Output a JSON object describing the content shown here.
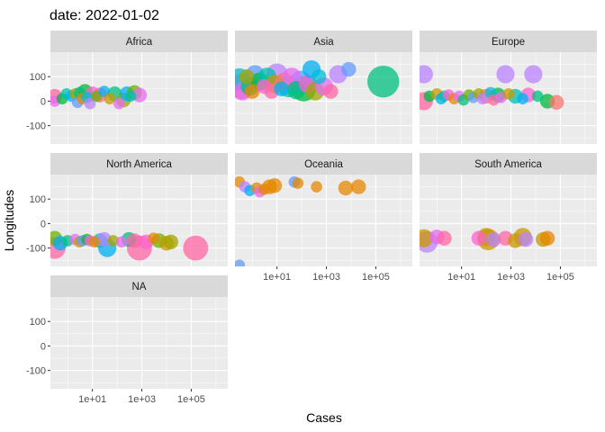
{
  "chart_data": {
    "type": "scatter",
    "title": "date: 2022-01-02",
    "xlabel": "Cases",
    "ylabel": "Longitudes",
    "x_scale": "log10",
    "xlim": [
      0.2,
      3000000
    ],
    "ylim": [
      -175,
      200
    ],
    "x_ticks": [
      10,
      1000,
      100000
    ],
    "x_tick_labels": [
      "1e+01",
      "1e+03",
      "1e+05"
    ],
    "y_ticks": [
      -100,
      0,
      100
    ],
    "y_tick_labels": [
      "-100",
      "0",
      "100"
    ],
    "grid": true,
    "legend": "none",
    "facet_by": "continent",
    "colors": {
      "panel_bg": "#ebebeb",
      "strip_bg": "#d9d9d9",
      "grid_major": "#ffffff",
      "palette": [
        "#F8766D",
        "#E58700",
        "#C99800",
        "#A3A500",
        "#6BB100",
        "#00BA38",
        "#00BF7D",
        "#00C0AF",
        "#00BCD8",
        "#00B0F6",
        "#619CFF",
        "#B983FF",
        "#E76BF3",
        "#FD61D1",
        "#FF67A4"
      ]
    },
    "panels": [
      {
        "label": "Africa",
        "points": [
          {
            "x": 0.3,
            "y": 20,
            "s": 3,
            "c": 14
          },
          {
            "x": 0.3,
            "y": 0,
            "s": 2,
            "c": 12
          },
          {
            "x": 0.6,
            "y": 10,
            "s": 2,
            "c": 5
          },
          {
            "x": 0.9,
            "y": 30,
            "s": 2,
            "c": 7
          },
          {
            "x": 1.4,
            "y": 20,
            "s": 2,
            "c": 9
          },
          {
            "x": 2,
            "y": 30,
            "s": 2,
            "c": 3
          },
          {
            "x": 2.5,
            "y": -5,
            "s": 2,
            "c": 10
          },
          {
            "x": 3,
            "y": 35,
            "s": 2,
            "c": 6
          },
          {
            "x": 4,
            "y": 10,
            "s": 2,
            "c": 1
          },
          {
            "x": 5,
            "y": 40,
            "s": 3,
            "c": 5
          },
          {
            "x": 6,
            "y": 15,
            "s": 2,
            "c": 8
          },
          {
            "x": 8,
            "y": -10,
            "s": 2,
            "c": 11
          },
          {
            "x": 10,
            "y": 30,
            "s": 3,
            "c": 13
          },
          {
            "x": 15,
            "y": 20,
            "s": 2,
            "c": 4
          },
          {
            "x": 20,
            "y": 25,
            "s": 3,
            "c": 14
          },
          {
            "x": 30,
            "y": 40,
            "s": 2,
            "c": 9
          },
          {
            "x": 50,
            "y": 10,
            "s": 2,
            "c": 2
          },
          {
            "x": 80,
            "y": 30,
            "s": 3,
            "c": 6
          },
          {
            "x": 120,
            "y": -10,
            "s": 2,
            "c": 12
          },
          {
            "x": 180,
            "y": 5,
            "s": 3,
            "c": 3
          },
          {
            "x": 250,
            "y": 30,
            "s": 3,
            "c": 9
          },
          {
            "x": 350,
            "y": 20,
            "s": 2,
            "c": 7
          },
          {
            "x": 500,
            "y": 35,
            "s": 3,
            "c": 4
          },
          {
            "x": 800,
            "y": 25,
            "s": 3,
            "c": 12
          }
        ]
      },
      {
        "label": "Asia",
        "points": [
          {
            "x": 0.3,
            "y": 90,
            "s": 5,
            "c": 8
          },
          {
            "x": 0.35,
            "y": 60,
            "s": 6,
            "c": 14
          },
          {
            "x": 0.4,
            "y": 40,
            "s": 4,
            "c": 12
          },
          {
            "x": 0.6,
            "y": 100,
            "s": 3,
            "c": 3
          },
          {
            "x": 0.8,
            "y": 60,
            "s": 4,
            "c": 6
          },
          {
            "x": 1,
            "y": 40,
            "s": 3,
            "c": 1
          },
          {
            "x": 1.3,
            "y": 110,
            "s": 4,
            "c": 10
          },
          {
            "x": 2,
            "y": 80,
            "s": 4,
            "c": 5
          },
          {
            "x": 3,
            "y": 60,
            "s": 3,
            "c": 13
          },
          {
            "x": 4,
            "y": 100,
            "s": 4,
            "c": 7
          },
          {
            "x": 6,
            "y": 40,
            "s": 3,
            "c": 14
          },
          {
            "x": 8,
            "y": 70,
            "s": 4,
            "c": 2
          },
          {
            "x": 10,
            "y": 110,
            "s": 5,
            "c": 11
          },
          {
            "x": 15,
            "y": 50,
            "s": 3,
            "c": 9
          },
          {
            "x": 20,
            "y": 80,
            "s": 4,
            "c": 0
          },
          {
            "x": 30,
            "y": 60,
            "s": 5,
            "c": 7
          },
          {
            "x": 40,
            "y": 100,
            "s": 4,
            "c": 12
          },
          {
            "x": 60,
            "y": 45,
            "s": 4,
            "c": 6
          },
          {
            "x": 90,
            "y": 80,
            "s": 5,
            "c": 10
          },
          {
            "x": 120,
            "y": 50,
            "s": 6,
            "c": 5
          },
          {
            "x": 180,
            "y": 70,
            "s": 4,
            "c": 13
          },
          {
            "x": 250,
            "y": 130,
            "s": 4,
            "c": 9
          },
          {
            "x": 350,
            "y": 40,
            "s": 4,
            "c": 3
          },
          {
            "x": 500,
            "y": 100,
            "s": 3,
            "c": 8
          },
          {
            "x": 800,
            "y": 60,
            "s": 4,
            "c": 12
          },
          {
            "x": 1500,
            "y": 40,
            "s": 3,
            "c": 14
          },
          {
            "x": 3000,
            "y": 110,
            "s": 4,
            "c": 11
          },
          {
            "x": 8000,
            "y": 130,
            "s": 3,
            "c": 10
          },
          {
            "x": 200000,
            "y": 80,
            "s": 8,
            "c": 6
          }
        ]
      },
      {
        "label": "Europe",
        "points": [
          {
            "x": 0.3,
            "y": 110,
            "s": 4,
            "c": 11
          },
          {
            "x": 0.3,
            "y": 0,
            "s": 4,
            "c": 14
          },
          {
            "x": 0.5,
            "y": 20,
            "s": 2,
            "c": 5
          },
          {
            "x": 1,
            "y": 30,
            "s": 2,
            "c": 2
          },
          {
            "x": 1.5,
            "y": 10,
            "s": 2,
            "c": 9
          },
          {
            "x": 2,
            "y": 20,
            "s": 2,
            "c": 7
          },
          {
            "x": 3,
            "y": 25,
            "s": 2,
            "c": 13
          },
          {
            "x": 5,
            "y": 10,
            "s": 2,
            "c": 1
          },
          {
            "x": 8,
            "y": 20,
            "s": 2,
            "c": 12
          },
          {
            "x": 12,
            "y": 5,
            "s": 2,
            "c": 6
          },
          {
            "x": 20,
            "y": 25,
            "s": 2,
            "c": 4
          },
          {
            "x": 30,
            "y": 15,
            "s": 2,
            "c": 10
          },
          {
            "x": 50,
            "y": 30,
            "s": 2,
            "c": 3
          },
          {
            "x": 70,
            "y": 10,
            "s": 2,
            "c": 11
          },
          {
            "x": 100,
            "y": 20,
            "s": 3,
            "c": 0
          },
          {
            "x": 150,
            "y": 35,
            "s": 2,
            "c": 8
          },
          {
            "x": 200,
            "y": 5,
            "s": 2,
            "c": 14
          },
          {
            "x": 300,
            "y": 25,
            "s": 3,
            "c": 5
          },
          {
            "x": 400,
            "y": 15,
            "s": 2,
            "c": 12
          },
          {
            "x": 600,
            "y": 110,
            "s": 4,
            "c": 11
          },
          {
            "x": 800,
            "y": 30,
            "s": 2,
            "c": 2
          },
          {
            "x": 1500,
            "y": 20,
            "s": 3,
            "c": 7
          },
          {
            "x": 3000,
            "y": 10,
            "s": 2,
            "c": 9
          },
          {
            "x": 5000,
            "y": 25,
            "s": 3,
            "c": 13
          },
          {
            "x": 8000,
            "y": 110,
            "s": 4,
            "c": 11
          },
          {
            "x": 12000,
            "y": 20,
            "s": 2,
            "c": 6
          },
          {
            "x": 30000,
            "y": 0,
            "s": 3,
            "c": 5
          },
          {
            "x": 70000,
            "y": -5,
            "s": 3,
            "c": 0
          }
        ]
      },
      {
        "label": "North America",
        "points": [
          {
            "x": 0.3,
            "y": -60,
            "s": 3,
            "c": 4
          },
          {
            "x": 0.3,
            "y": -100,
            "s": 5,
            "c": 14
          },
          {
            "x": 0.5,
            "y": -80,
            "s": 3,
            "c": 9
          },
          {
            "x": 1,
            "y": -70,
            "s": 2,
            "c": 6
          },
          {
            "x": 2,
            "y": -65,
            "s": 2,
            "c": 12
          },
          {
            "x": 3,
            "y": -75,
            "s": 2,
            "c": 2
          },
          {
            "x": 4,
            "y": -70,
            "s": 2,
            "c": 10
          },
          {
            "x": 6,
            "y": -65,
            "s": 2,
            "c": 5
          },
          {
            "x": 8,
            "y": -70,
            "s": 2,
            "c": 13
          },
          {
            "x": 12,
            "y": -75,
            "s": 2,
            "c": 1
          },
          {
            "x": 20,
            "y": -70,
            "s": 3,
            "c": 8
          },
          {
            "x": 30,
            "y": -65,
            "s": 3,
            "c": 11
          },
          {
            "x": 40,
            "y": -100,
            "s": 4,
            "c": 9
          },
          {
            "x": 70,
            "y": -70,
            "s": 2,
            "c": 3
          },
          {
            "x": 150,
            "y": -75,
            "s": 2,
            "c": 12
          },
          {
            "x": 300,
            "y": -65,
            "s": 3,
            "c": 6
          },
          {
            "x": 500,
            "y": -70,
            "s": 3,
            "c": 14
          },
          {
            "x": 800,
            "y": -100,
            "s": 6,
            "c": 14
          },
          {
            "x": 1500,
            "y": -75,
            "s": 3,
            "c": 13
          },
          {
            "x": 3000,
            "y": -60,
            "s": 2,
            "c": 1
          },
          {
            "x": 5000,
            "y": -70,
            "s": 3,
            "c": 4
          },
          {
            "x": 10000,
            "y": -80,
            "s": 3,
            "c": 2
          },
          {
            "x": 15000,
            "y": -75,
            "s": 3,
            "c": 3
          },
          {
            "x": 150000,
            "y": -100,
            "s": 6,
            "c": 14
          }
        ]
      },
      {
        "label": "Oceania",
        "points": [
          {
            "x": 0.3,
            "y": -170,
            "s": 2,
            "c": 10
          },
          {
            "x": 0.3,
            "y": 170,
            "s": 2,
            "c": 1
          },
          {
            "x": 0.5,
            "y": 150,
            "s": 2,
            "c": 11
          },
          {
            "x": 0.8,
            "y": 135,
            "s": 2,
            "c": 9
          },
          {
            "x": 1.5,
            "y": 145,
            "s": 2,
            "c": 1
          },
          {
            "x": 2,
            "y": 130,
            "s": 2,
            "c": 12
          },
          {
            "x": 3,
            "y": 140,
            "s": 2,
            "c": 1
          },
          {
            "x": 5,
            "y": 150,
            "s": 3,
            "c": 1
          },
          {
            "x": 8,
            "y": 155,
            "s": 3,
            "c": 1
          },
          {
            "x": 50,
            "y": 170,
            "s": 2,
            "c": 10
          },
          {
            "x": 70,
            "y": 165,
            "s": 2,
            "c": 1
          },
          {
            "x": 400,
            "y": 150,
            "s": 2,
            "c": 1
          },
          {
            "x": 6000,
            "y": 145,
            "s": 3,
            "c": 1
          },
          {
            "x": 20000,
            "y": 150,
            "s": 3,
            "c": 1
          }
        ]
      },
      {
        "label": "South America",
        "points": [
          {
            "x": 0.3,
            "y": -60,
            "s": 4,
            "c": 2
          },
          {
            "x": 0.4,
            "y": -75,
            "s": 5,
            "c": 11
          },
          {
            "x": 1,
            "y": -55,
            "s": 3,
            "c": 12
          },
          {
            "x": 2,
            "y": -60,
            "s": 3,
            "c": 14
          },
          {
            "x": 50,
            "y": -60,
            "s": 3,
            "c": 13
          },
          {
            "x": 100,
            "y": -55,
            "s": 4,
            "c": 2
          },
          {
            "x": 120,
            "y": -65,
            "s": 5,
            "c": 2
          },
          {
            "x": 200,
            "y": -65,
            "s": 3,
            "c": 11
          },
          {
            "x": 600,
            "y": -60,
            "s": 3,
            "c": 14
          },
          {
            "x": 1500,
            "y": -70,
            "s": 3,
            "c": 2
          },
          {
            "x": 3000,
            "y": -55,
            "s": 4,
            "c": 2
          },
          {
            "x": 4000,
            "y": -65,
            "s": 3,
            "c": 11
          },
          {
            "x": 20000,
            "y": -65,
            "s": 3,
            "c": 2
          },
          {
            "x": 30000,
            "y": -60,
            "s": 3,
            "c": 1
          }
        ]
      },
      {
        "label": "NA",
        "points": []
      }
    ]
  }
}
